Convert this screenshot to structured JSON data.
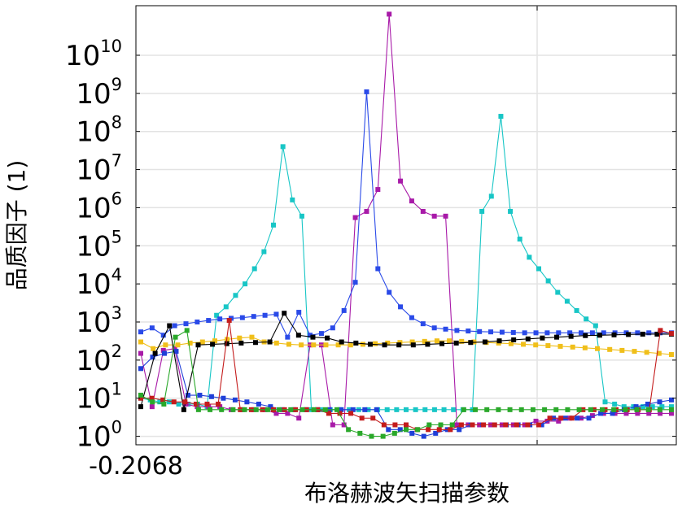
{
  "chart_data": {
    "type": "line",
    "xlabel": "布洛赫波矢扫描参数",
    "ylabel": "品质因子 (1)",
    "x_tick_labels": [
      "-0.2068"
    ],
    "y_scale": "log",
    "ylim": [
      0.6,
      200000000000.0
    ],
    "y_ticks": [
      {
        "base": "10",
        "exp": "0"
      },
      {
        "base": "10",
        "exp": "1"
      },
      {
        "base": "10",
        "exp": "2"
      },
      {
        "base": "10",
        "exp": "3"
      },
      {
        "base": "10",
        "exp": "4"
      },
      {
        "base": "10",
        "exp": "5"
      },
      {
        "base": "10",
        "exp": "6"
      },
      {
        "base": "10",
        "exp": "7"
      },
      {
        "base": "10",
        "exp": "8"
      },
      {
        "base": "10",
        "exp": "9"
      },
      {
        "base": "10",
        "exp": "10"
      }
    ],
    "grid": true,
    "marker": "square",
    "x_point_count": 57,
    "series": [
      {
        "color": "#18c6c6",
        "values": [
          10,
          9,
          8,
          8,
          7,
          7,
          7,
          6,
          1500,
          2500,
          5000,
          10000,
          25000,
          70000,
          350000,
          40000000,
          1600000,
          600000,
          5,
          5,
          5,
          5,
          5,
          5,
          5,
          5,
          5,
          5,
          5,
          5,
          5,
          5,
          5,
          5,
          5,
          5,
          800000,
          2000000,
          250000000,
          800000,
          150000,
          50000,
          25000,
          12000,
          6000,
          3500,
          2000,
          1200,
          800,
          8,
          7,
          6,
          6,
          6,
          6,
          6,
          6
        ]
      },
      {
        "color": "#a81aa8",
        "values": [
          150,
          6,
          180,
          200,
          7,
          6,
          6,
          6,
          5,
          5,
          5,
          5,
          4,
          4,
          3,
          250,
          250,
          2,
          2,
          550000,
          800000,
          3000000,
          120000000000,
          5000000,
          1500000,
          800000,
          600000,
          600000,
          2,
          2,
          2,
          2,
          2,
          2,
          2,
          2.5,
          2.5,
          2.5,
          3,
          3,
          3.5,
          4,
          4,
          4,
          4,
          4,
          4,
          4
        ]
      },
      {
        "color": "#1f3fd8",
        "values": [
          60,
          120,
          150,
          170,
          12,
          12,
          11,
          10,
          9,
          8,
          7,
          6,
          5,
          5,
          5,
          5,
          5,
          5,
          5,
          5,
          5,
          1.5,
          1.5,
          1.2,
          1,
          1.2,
          1.5,
          1.5,
          2,
          2,
          2,
          2,
          2,
          2,
          2,
          3,
          3,
          3,
          3,
          4,
          4,
          5,
          6,
          7,
          8,
          9
        ]
      },
      {
        "color": "#2a4ae8",
        "values": [
          550,
          700,
          450,
          800,
          900,
          1000,
          1100,
          1200,
          1250,
          1300,
          1400,
          1500,
          1600,
          400,
          1800,
          450,
          500,
          700,
          2000,
          11000,
          1100000000,
          25000,
          6000,
          2500,
          1300,
          900,
          700,
          650,
          600,
          580,
          560,
          550,
          540,
          530,
          520,
          520,
          520,
          520,
          520,
          520,
          520,
          520,
          520,
          520,
          520,
          520,
          520,
          520
        ]
      },
      {
        "color": "#f0bf1a",
        "values": [
          300,
          200,
          250,
          250,
          280,
          300,
          320,
          350,
          380,
          400,
          300,
          280,
          260,
          250,
          250,
          250,
          250,
          250,
          260,
          270,
          280,
          290,
          300,
          310,
          320,
          320,
          310,
          300,
          290,
          280,
          270,
          260,
          250,
          240,
          230,
          220,
          210,
          200,
          190,
          180,
          170,
          160,
          150,
          140
        ]
      },
      {
        "color": "#000000",
        "values": [
          6,
          150,
          800,
          5,
          250,
          260,
          270,
          280,
          290,
          300,
          1700,
          450,
          400,
          380,
          300,
          280,
          260,
          250,
          250,
          250,
          260,
          270,
          280,
          290,
          300,
          320,
          340,
          360,
          380,
          400,
          420,
          440,
          450,
          460,
          470,
          480,
          480,
          480
        ]
      },
      {
        "color": "#c41c1c",
        "values": [
          10,
          10,
          9,
          8,
          8,
          7,
          7,
          7,
          1100,
          5,
          5,
          5,
          5,
          5,
          5,
          5,
          5,
          4,
          4,
          4,
          3,
          3,
          2,
          2,
          2,
          1.5,
          1.5,
          1.5,
          1.5,
          2,
          2,
          2,
          2,
          2,
          2,
          2,
          2,
          3,
          3,
          3,
          5,
          5,
          5,
          5,
          5,
          5,
          5,
          600,
          500
        ]
      },
      {
        "color": "#2aa82a",
        "values": [
          12,
          8,
          7,
          400,
          600,
          5,
          5,
          5,
          5,
          5,
          5,
          5,
          5,
          5,
          5,
          5,
          5,
          5,
          1.5,
          1.2,
          1,
          1,
          1.2,
          1.5,
          1.5,
          2,
          2,
          2,
          5,
          5,
          5,
          5,
          5,
          5,
          5,
          5,
          5,
          5,
          5,
          5,
          5,
          5,
          5,
          5,
          5,
          5,
          5
        ]
      }
    ]
  }
}
